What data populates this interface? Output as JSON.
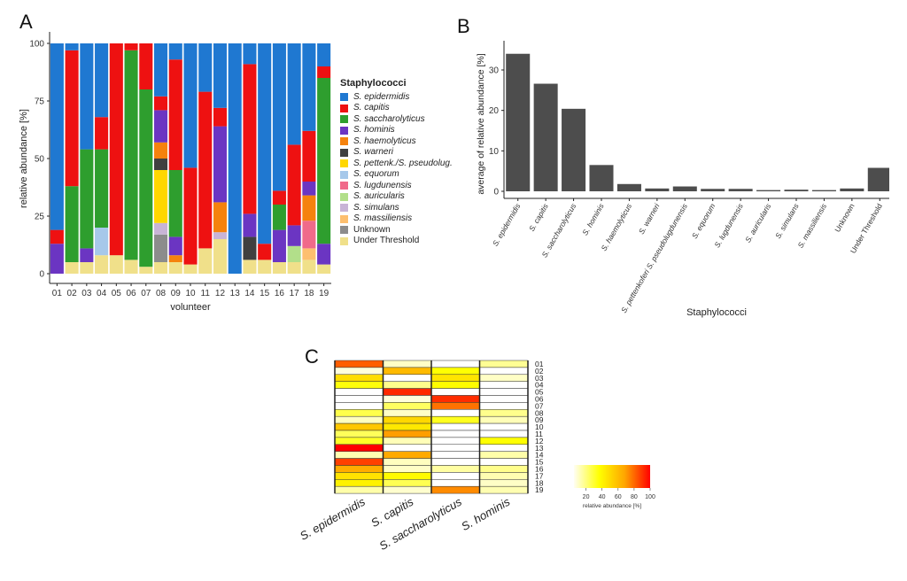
{
  "panels": {
    "a": "A",
    "b": "B",
    "c": "C"
  },
  "species": [
    {
      "label": "S. epidermidis",
      "italic": true,
      "color": "#1f78d1"
    },
    {
      "label": "S. capitis",
      "italic": true,
      "color": "#ee1111"
    },
    {
      "label": "S. saccharolyticus",
      "italic": true,
      "color": "#2e9e2e"
    },
    {
      "label": "S. hominis",
      "italic": true,
      "color": "#6b35c2"
    },
    {
      "label": "S. haemolyticus",
      "italic": true,
      "color": "#f5820d"
    },
    {
      "label": "S. warneri",
      "italic": true,
      "color": "#404040"
    },
    {
      "label": "S. pettenk./S. pseudolug.",
      "italic": true,
      "color": "#ffd700"
    },
    {
      "label": "S. equorum",
      "italic": true,
      "color": "#a6c8ea"
    },
    {
      "label": "S. lugdunensis",
      "italic": true,
      "color": "#f06a8a"
    },
    {
      "label": "S. auricularis",
      "italic": true,
      "color": "#b2df8a"
    },
    {
      "label": "S. simulans",
      "italic": true,
      "color": "#c8b4d6"
    },
    {
      "label": "S. massiliensis",
      "italic": true,
      "color": "#fdbf6f"
    },
    {
      "label": "Unknown",
      "italic": false,
      "color": "#8c8c8c"
    },
    {
      "label": "Under Threshold",
      "italic": false,
      "color": "#f0e08a"
    }
  ],
  "chart_data": [
    {
      "type": "bar",
      "stacked": true,
      "panel": "A",
      "xlabel": "volunteer",
      "ylabel": "relative abundance [%]",
      "ylim": [
        0,
        100
      ],
      "yticks": [
        0,
        25,
        50,
        75,
        100
      ],
      "legend_title": "Staphylococci",
      "legend_position": "right",
      "categories": [
        "01",
        "02",
        "03",
        "04",
        "05",
        "06",
        "07",
        "08",
        "09",
        "10",
        "11",
        "12",
        "13",
        "14",
        "15",
        "16",
        "17",
        "18",
        "19"
      ],
      "series": [
        {
          "name": "Under Threshold",
          "values": [
            0,
            5,
            5,
            8,
            8,
            6,
            3,
            5,
            5,
            4,
            11,
            15,
            0,
            6,
            6,
            5,
            5,
            6,
            4
          ]
        },
        {
          "name": "Unknown",
          "values": [
            0,
            0,
            0,
            0,
            0,
            0,
            0,
            12,
            0,
            0,
            0,
            0,
            0,
            0,
            0,
            0,
            0,
            0,
            0
          ]
        },
        {
          "name": "S. massiliensis",
          "values": [
            0,
            0,
            0,
            0,
            0,
            0,
            0,
            0,
            0,
            0,
            0,
            0,
            0,
            0,
            0,
            0,
            0,
            5,
            0
          ]
        },
        {
          "name": "S. simulans",
          "values": [
            0,
            0,
            0,
            0,
            0,
            0,
            0,
            5,
            0,
            0,
            0,
            3,
            0,
            0,
            0,
            0,
            0,
            0,
            0
          ]
        },
        {
          "name": "S. auricularis",
          "values": [
            0,
            0,
            0,
            0,
            0,
            0,
            0,
            0,
            0,
            0,
            0,
            0,
            0,
            0,
            0,
            0,
            7,
            0,
            0
          ]
        },
        {
          "name": "S. lugdunensis",
          "values": [
            0,
            0,
            0,
            0,
            0,
            0,
            0,
            0,
            0,
            0,
            0,
            0,
            0,
            0,
            0,
            0,
            0,
            12,
            0
          ]
        },
        {
          "name": "S. equorum",
          "values": [
            0,
            0,
            0,
            12,
            0,
            0,
            0,
            0,
            0,
            0,
            0,
            0,
            0,
            0,
            0,
            0,
            0,
            0,
            0
          ]
        },
        {
          "name": "S. pettenk./S. pseudolug.",
          "values": [
            0,
            0,
            0,
            0,
            0,
            0,
            0,
            23,
            0,
            0,
            0,
            0,
            0,
            0,
            0,
            0,
            0,
            0,
            0
          ]
        },
        {
          "name": "S. warneri",
          "values": [
            0,
            0,
            0,
            0,
            0,
            0,
            0,
            5,
            0,
            0,
            0,
            0,
            0,
            10,
            0,
            0,
            0,
            0,
            0
          ]
        },
        {
          "name": "S. haemolyticus",
          "values": [
            0,
            0,
            0,
            0,
            0,
            0,
            0,
            7,
            3,
            0,
            0,
            13,
            0,
            0,
            0,
            0,
            0,
            11,
            0
          ]
        },
        {
          "name": "S. hominis",
          "values": [
            13,
            0,
            6,
            0,
            0,
            0,
            0,
            14,
            8,
            0,
            0,
            33,
            0,
            10,
            0,
            14,
            9,
            6,
            9
          ]
        },
        {
          "name": "S. saccharolyticus",
          "values": [
            0,
            33,
            43,
            34,
            0,
            91,
            77,
            0,
            29,
            0,
            0,
            0,
            0,
            0,
            0,
            11,
            0,
            0,
            72
          ]
        },
        {
          "name": "S. capitis",
          "values": [
            6,
            59,
            0,
            14,
            92,
            3,
            20,
            6,
            48,
            42,
            68,
            8,
            0,
            65,
            7,
            6,
            35,
            22,
            5
          ]
        },
        {
          "name": "S. epidermidis",
          "values": [
            81,
            3,
            46,
            32,
            0,
            0,
            0,
            23,
            7,
            54,
            21,
            28,
            100,
            9,
            87,
            64,
            44,
            38,
            10
          ]
        }
      ]
    },
    {
      "type": "bar",
      "panel": "B",
      "xlabel": "Staphylococci",
      "ylabel": "average of relative abundance [%]",
      "ylim": [
        -1,
        36
      ],
      "yticks": [
        0,
        10,
        20,
        30
      ],
      "categories": [
        "S. epidermidis",
        "S. capitis",
        "S. saccharolyticus",
        "S. hominis",
        "S. haemolyticus",
        "S. warneri",
        "S. pettenkoferi S. pseudolugdunensis",
        "S. equorum",
        "S. lugdunensis",
        "S. auricularis",
        "S. simulans",
        "S. massiliensis",
        "Unknown",
        "Under Threshold"
      ],
      "values": [
        34.0,
        26.6,
        20.4,
        6.5,
        1.8,
        0.7,
        1.2,
        0.6,
        0.6,
        0.3,
        0.4,
        0.3,
        0.7,
        5.8
      ],
      "color": "#4d4d4d"
    },
    {
      "type": "heatmap",
      "panel": "C",
      "columns": [
        "S. epidermidis",
        "S. capitis",
        "S. saccharolyticus",
        "S. hominis"
      ],
      "rows": [
        "01",
        "02",
        "03",
        "04",
        "05",
        "06",
        "07",
        "08",
        "09",
        "10",
        "11",
        "12",
        "13",
        "14",
        "15",
        "16",
        "17",
        "18",
        "19"
      ],
      "values": [
        [
          81,
          6,
          0,
          13
        ],
        [
          3,
          59,
          33,
          0
        ],
        [
          46,
          0,
          43,
          6
        ],
        [
          32,
          14,
          34,
          0
        ],
        [
          0,
          92,
          0,
          0
        ],
        [
          0,
          3,
          91,
          0
        ],
        [
          0,
          20,
          77,
          0
        ],
        [
          23,
          6,
          0,
          14
        ],
        [
          7,
          48,
          29,
          8
        ],
        [
          54,
          42,
          0,
          0
        ],
        [
          21,
          68,
          0,
          0
        ],
        [
          28,
          8,
          0,
          33
        ],
        [
          100,
          0,
          0,
          0
        ],
        [
          9,
          65,
          0,
          10
        ],
        [
          87,
          7,
          0,
          0
        ],
        [
          64,
          6,
          11,
          14
        ],
        [
          44,
          35,
          0,
          9
        ],
        [
          38,
          22,
          0,
          6
        ],
        [
          10,
          5,
          72,
          9
        ]
      ],
      "colorbar_label": "relative abundance [%]",
      "colorbar_ticks": [
        20,
        40,
        60,
        80,
        100
      ],
      "colorscale": [
        "#fffef2",
        "#ffff00",
        "#ffa500",
        "#ff0000"
      ]
    }
  ]
}
